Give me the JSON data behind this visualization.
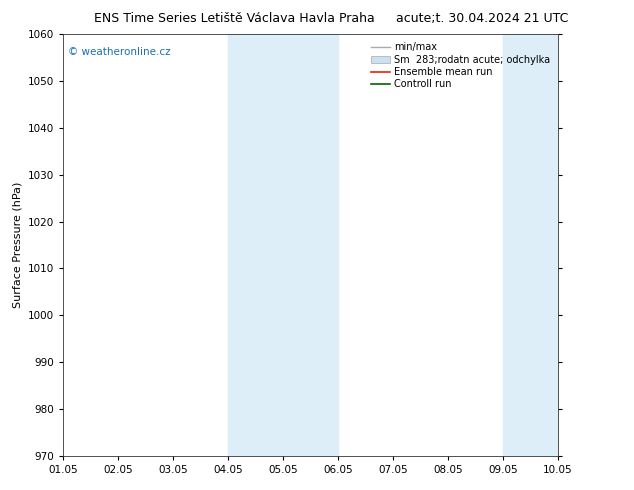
{
  "title_left": "ENS Time Series Letiště Václava Havla Praha",
  "title_right": "acute;t. 30.04.2024 21 UTC",
  "ylabel": "Surface Pressure (hPa)",
  "ylim": [
    970,
    1060
  ],
  "yticks": [
    970,
    980,
    990,
    1000,
    1010,
    1020,
    1030,
    1040,
    1050,
    1060
  ],
  "xlim": [
    0,
    9
  ],
  "xtick_labels": [
    "01.05",
    "02.05",
    "03.05",
    "04.05",
    "05.05",
    "06.05",
    "07.05",
    "08.05",
    "09.05",
    "10.05"
  ],
  "xtick_positions": [
    0,
    1,
    2,
    3,
    4,
    5,
    6,
    7,
    8,
    9
  ],
  "shaded_bands": [
    {
      "xmin": 3.0,
      "xmax": 5.0
    },
    {
      "xmin": 8.0,
      "xmax": 9.0
    }
  ],
  "shade_color": "#ddeef8",
  "watermark_text": "© weatheronline.cz",
  "watermark_color": "#1a6faf",
  "legend_entries": [
    {
      "label": "min/max",
      "color": "#aaaaaa",
      "lw": 1.0,
      "type": "line"
    },
    {
      "label": "Sm  283;rodatn acute; odchylka",
      "color": "#cce0f0",
      "type": "rect"
    },
    {
      "label": "Ensemble mean run",
      "color": "#ee2200",
      "lw": 1.2,
      "type": "line"
    },
    {
      "label": "Controll run",
      "color": "#006600",
      "lw": 1.2,
      "type": "line"
    }
  ],
  "bg_color": "#ffffff",
  "plot_bg_color": "#ffffff",
  "title_fontsize": 9,
  "axis_label_fontsize": 8,
  "tick_fontsize": 7.5,
  "legend_fontsize": 7
}
